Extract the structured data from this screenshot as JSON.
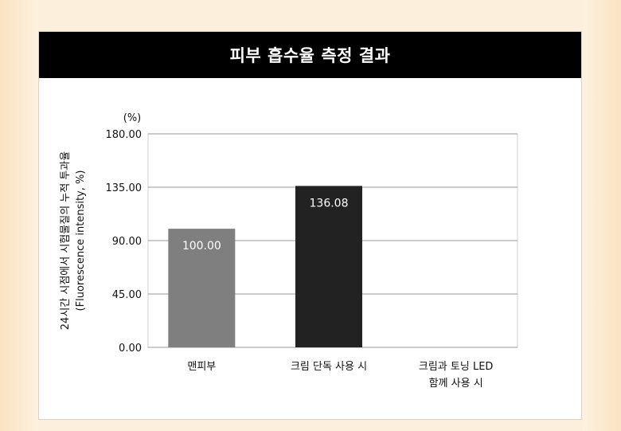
{
  "header": {
    "title": "피부 흡수율 측정 결과"
  },
  "chart_data": {
    "type": "bar",
    "unit_label": "(%)",
    "ylabel_line1": "24시간 시점에서 시험물질의 누적 투과율",
    "ylabel_line2": "(Fluorescence intensity, %)",
    "ylim": [
      0,
      180
    ],
    "yticks": [
      "0.00",
      "45.00",
      "90.00",
      "135.00",
      "180.00"
    ],
    "ytick_values": [
      0,
      45,
      90,
      135,
      180
    ],
    "grid": true,
    "categories": [
      {
        "line1": "맨피부",
        "line2": ""
      },
      {
        "line1": "크림 단독 사용 시",
        "line2": ""
      },
      {
        "line1": "크림과 토닝 LED",
        "line2": "함께 사용 시"
      }
    ],
    "values": [
      100.0,
      136.08,
      null
    ],
    "value_labels": [
      "100.00",
      "136.08",
      ""
    ],
    "colors": [
      "#7f7f7f",
      "#222222",
      "#444444"
    ]
  }
}
